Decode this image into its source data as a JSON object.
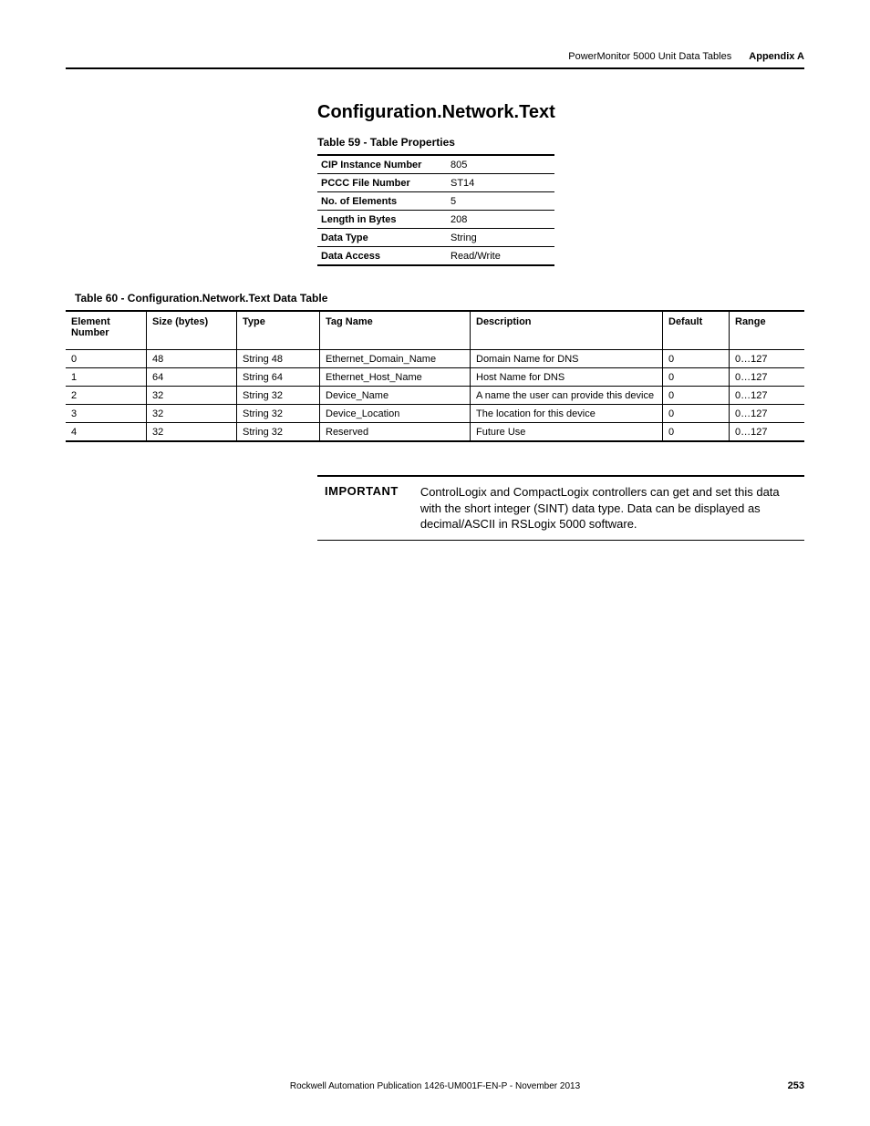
{
  "header": {
    "doc_title": "PowerMonitor 5000 Unit Data Tables",
    "appendix": "Appendix A"
  },
  "section": {
    "title": "Configuration.Network.Text"
  },
  "table59": {
    "caption": "Table 59 - Table Properties",
    "rows": [
      {
        "k": "CIP Instance Number",
        "v": "805"
      },
      {
        "k": "PCCC File Number",
        "v": "ST14"
      },
      {
        "k": "No. of Elements",
        "v": "5"
      },
      {
        "k": "Length in Bytes",
        "v": "208"
      },
      {
        "k": "Data Type",
        "v": "String"
      },
      {
        "k": "Data Access",
        "v": "Read/Write"
      }
    ]
  },
  "table60": {
    "caption": "Table 60 - Configuration.Network.Text Data Table",
    "headers": {
      "element": "Element Number",
      "size": "Size (bytes)",
      "type": "Type",
      "tag": "Tag Name",
      "desc": "Description",
      "def": "Default",
      "range": "Range"
    },
    "rows": [
      {
        "en": "0",
        "sz": "48",
        "ty": "String 48",
        "tag": "Ethernet_Domain_Name",
        "desc": "Domain Name for DNS",
        "def": "0",
        "rng": "0…127"
      },
      {
        "en": "1",
        "sz": "64",
        "ty": "String 64",
        "tag": "Ethernet_Host_Name",
        "desc": "Host Name for DNS",
        "def": "0",
        "rng": "0…127"
      },
      {
        "en": "2",
        "sz": "32",
        "ty": "String 32",
        "tag": "Device_Name",
        "desc": "A name the user can provide this device",
        "def": "0",
        "rng": "0…127"
      },
      {
        "en": "3",
        "sz": "32",
        "ty": "String 32",
        "tag": "Device_Location",
        "desc": "The location for this device",
        "def": "0",
        "rng": "0…127"
      },
      {
        "en": "4",
        "sz": "32",
        "ty": "String 32",
        "tag": "Reserved",
        "desc": "Future Use",
        "def": "0",
        "rng": "0…127"
      }
    ]
  },
  "important": {
    "label": "IMPORTANT",
    "text": "ControlLogix and CompactLogix controllers can get and set this data with the short integer (SINT) data type. Data can be displayed as decimal/ASCII in RSLogix 5000 software."
  },
  "footer": {
    "pub": "Rockwell Automation Publication 1426-UM001F-EN-P - November 2013",
    "page": "253"
  }
}
